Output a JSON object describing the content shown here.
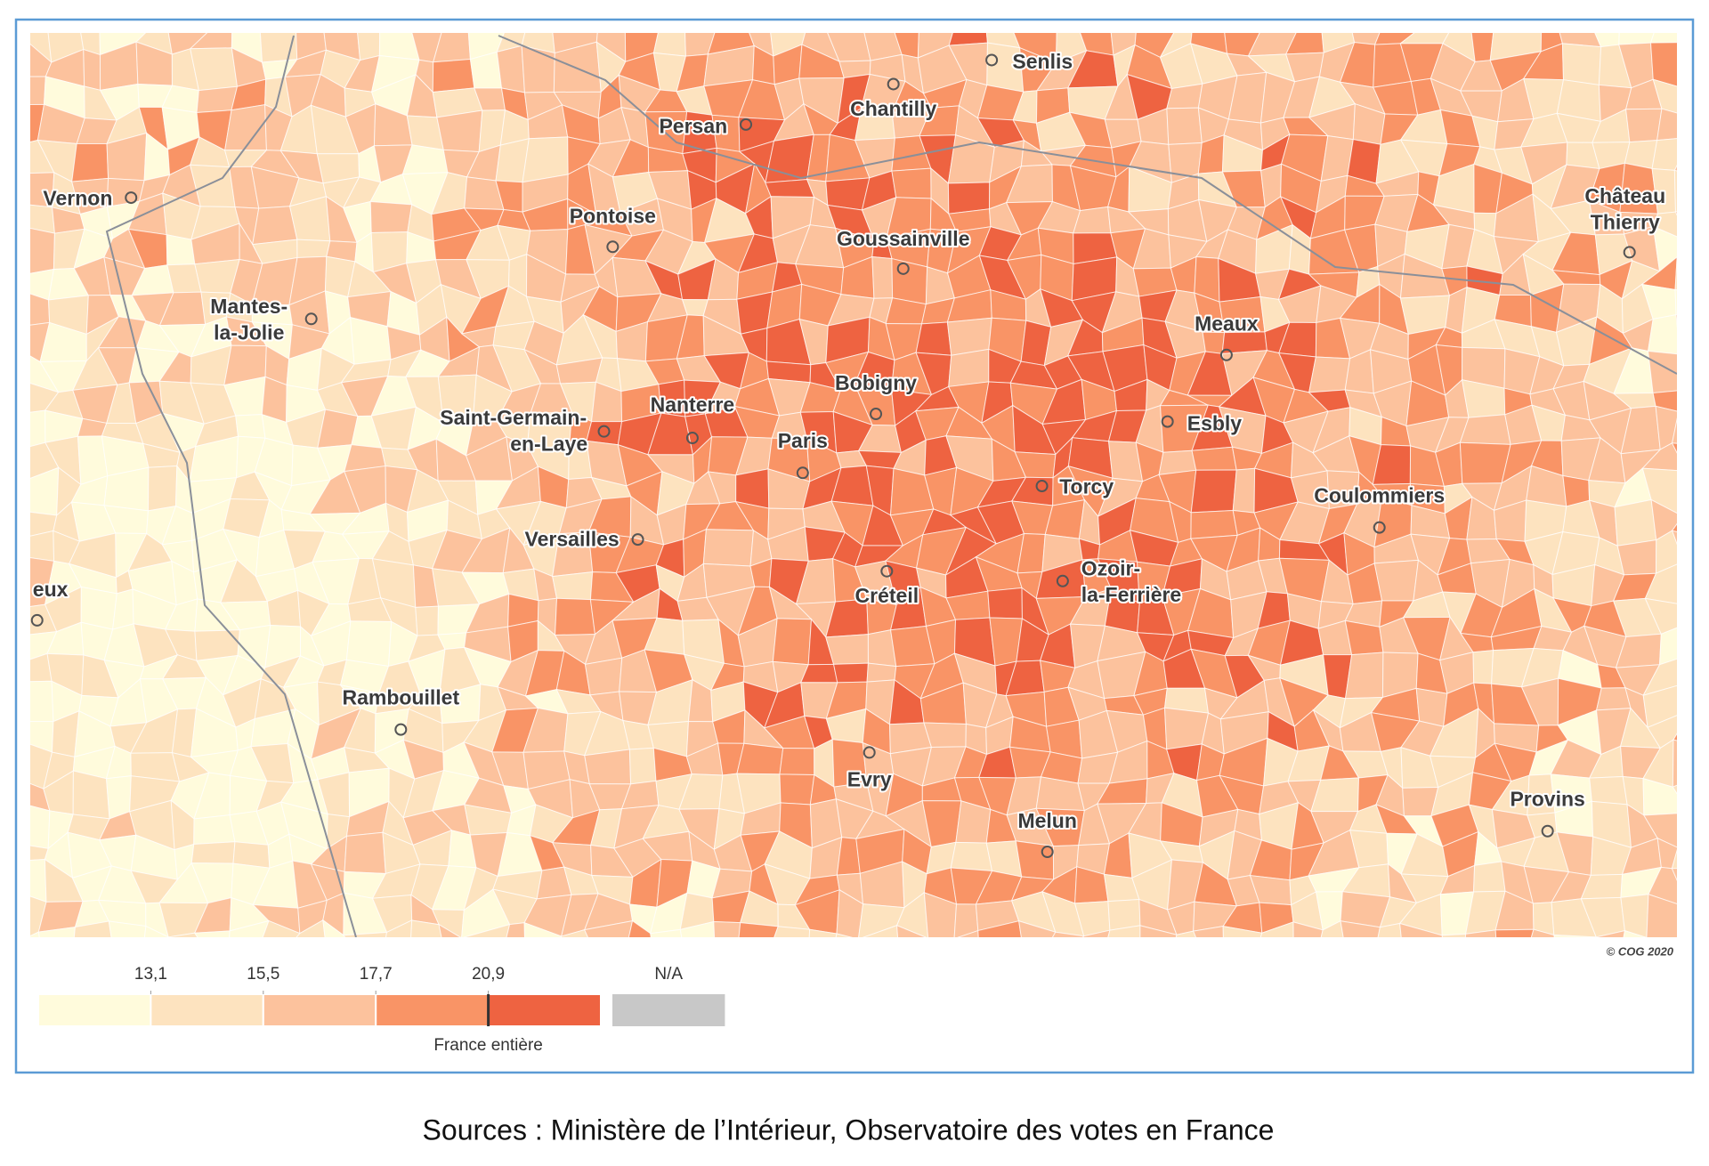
{
  "map": {
    "cities": [
      {
        "name": "Senlis"
      },
      {
        "name": "Chantilly"
      },
      {
        "name": "Persan"
      },
      {
        "name": "Vernon"
      },
      {
        "name": "Pontoise"
      },
      {
        "name": "Goussainville"
      },
      {
        "lines": [
          "Château",
          "Thierry"
        ]
      },
      {
        "lines": [
          "Mantes-",
          "la-Jolie"
        ]
      },
      {
        "name": "Meaux"
      },
      {
        "name": "Bobigny"
      },
      {
        "lines": [
          "Saint-Germain-",
          "en-Laye"
        ]
      },
      {
        "name": "Nanterre"
      },
      {
        "name": "Esbly"
      },
      {
        "name": "Paris"
      },
      {
        "name": "Torcy"
      },
      {
        "name": "Coulommiers"
      },
      {
        "name": "Versailles"
      },
      {
        "name": "Créteil"
      },
      {
        "lines": [
          "Ozoir-",
          "la-Ferrière"
        ]
      },
      {
        "name": "eux"
      },
      {
        "name": "Rambouillet"
      },
      {
        "name": "Evry"
      },
      {
        "name": "Melun"
      },
      {
        "name": "Provins"
      }
    ],
    "legend": {
      "breaks": [
        {
          "value": 13.1,
          "label": "13,1"
        },
        {
          "value": 15.5,
          "label": "15,5"
        },
        {
          "value": 17.7,
          "label": "17,7"
        },
        {
          "value": 20.9,
          "label": "20,9"
        }
      ],
      "colors": [
        "#fffbdc",
        "#fde3bf",
        "#fcc29d",
        "#f99466",
        "#ee6341"
      ],
      "na": {
        "label": "N/A",
        "color": "#c8c8c8"
      },
      "france_entiere": {
        "label": "France entière",
        "value": 20.9
      }
    },
    "copyright": "© COG 2020"
  },
  "source": "Sources : Ministère de l’Intérieur, Observatoire des votes en France"
}
